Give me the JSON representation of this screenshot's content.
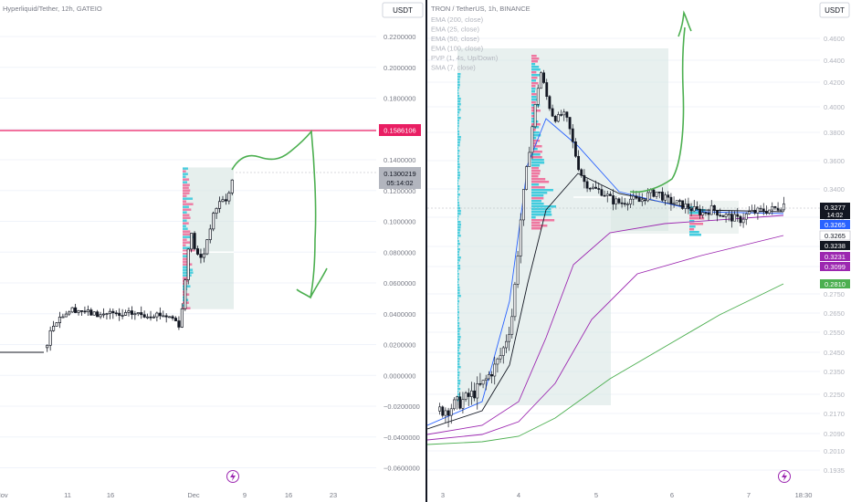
{
  "chart_data": [
    {
      "type": "candlestick",
      "symbol_title": "Hyperliquid/Tether, 12h, GATEIO",
      "currency_button": "USDT",
      "y_ticks": [
        "0.2200000",
        "0.2000000",
        "0.1800000",
        "0.1600000",
        "0.1400000",
        "0.1200000",
        "0.1000000",
        "0.0800000",
        "0.0600000",
        "0.0400000",
        "0.0200000",
        "0.0000000",
        "−0.0200000",
        "−0.0400000",
        "−0.0600000"
      ],
      "y_tick_values": [
        0.22,
        0.2,
        0.18,
        0.16,
        0.14,
        0.12,
        0.1,
        0.08,
        0.06,
        0.04,
        0.02,
        0.0,
        -0.02,
        -0.04,
        -0.06
      ],
      "x_ticks": [
        "Nov",
        "11",
        "16",
        "Dec",
        "9",
        "16",
        "23"
      ],
      "horizontal_line": {
        "value": 0.1586106,
        "label": "0.1586106",
        "color": "#e91e63"
      },
      "price_label": {
        "value": "0.1300219",
        "countdown": "05:14:02"
      },
      "price_path": [
        [
          0,
          0.015
        ],
        [
          40,
          0.015
        ],
        [
          50,
          0.018
        ],
        [
          55,
          0.028
        ],
        [
          60,
          0.035
        ],
        [
          70,
          0.04
        ],
        [
          80,
          0.043
        ],
        [
          90,
          0.042
        ],
        [
          100,
          0.04
        ],
        [
          110,
          0.039
        ],
        [
          120,
          0.041
        ],
        [
          130,
          0.038
        ],
        [
          140,
          0.04
        ],
        [
          150,
          0.04
        ],
        [
          160,
          0.039
        ],
        [
          170,
          0.04
        ],
        [
          180,
          0.039
        ],
        [
          190,
          0.037
        ],
        [
          196,
          0.033
        ],
        [
          200,
          0.045
        ],
        [
          204,
          0.07
        ],
        [
          208,
          0.095
        ],
        [
          212,
          0.085
        ],
        [
          216,
          0.078
        ],
        [
          220,
          0.076
        ],
        [
          224,
          0.08
        ],
        [
          228,
          0.092
        ],
        [
          232,
          0.1
        ],
        [
          236,
          0.108
        ],
        [
          240,
          0.112
        ],
        [
          244,
          0.115
        ],
        [
          248,
          0.112
        ],
        [
          252,
          0.122
        ],
        [
          256,
          0.13
        ]
      ],
      "candle_count": 60,
      "volume_profile_range": [
        0.043,
        0.135
      ],
      "drawing": "green hand-drawn forecast arrow pointing down"
    },
    {
      "type": "candlestick",
      "symbol_title": "TRON / TetherUS, 1h, BINANCE",
      "currency_button": "USDT",
      "legend": [
        "EMA (200, close)",
        "EMA (25, close)",
        "EMA (50, close)",
        "EMA (100, close)",
        "PVP (1, 4s, Up/Down)",
        "SMA (7, close)"
      ],
      "y_ticks": [
        "0.4600",
        "0.4400",
        "0.4200",
        "0.4000",
        "0.3800",
        "0.3600",
        "0.3400",
        "0.3200",
        "0.3000",
        "0.2900",
        "0.2750",
        "0.2650",
        "0.2550",
        "0.2450",
        "0.2350",
        "0.2250",
        "0.2170",
        "0.2090",
        "0.2010",
        "0.1935"
      ],
      "x_ticks": [
        "3",
        "4",
        "5",
        "6",
        "7",
        "18:30"
      ],
      "price_labels": [
        {
          "value": "0.3277",
          "sub": "14:02",
          "color": "#131722"
        },
        {
          "value": "0.3265",
          "color": "#2962ff"
        },
        {
          "value": "0.3265",
          "color": "#ffffff"
        },
        {
          "value": "0.3238",
          "color": "#131722"
        },
        {
          "value": "0.3231",
          "color": "#9c27b0"
        },
        {
          "value": "0.3099",
          "color": "#9c27b0"
        },
        {
          "value": "0.2810",
          "color": "#4caf50"
        }
      ],
      "price_path": [
        [
          0,
          0.218
        ],
        [
          10,
          0.219
        ],
        [
          20,
          0.221
        ],
        [
          30,
          0.223
        ],
        [
          40,
          0.226
        ],
        [
          50,
          0.23
        ],
        [
          60,
          0.236
        ],
        [
          70,
          0.245
        ],
        [
          80,
          0.26
        ],
        [
          86,
          0.29
        ],
        [
          92,
          0.33
        ],
        [
          100,
          0.37
        ],
        [
          106,
          0.4
        ],
        [
          112,
          0.43
        ],
        [
          118,
          0.41
        ],
        [
          124,
          0.395
        ],
        [
          130,
          0.39
        ],
        [
          136,
          0.395
        ],
        [
          142,
          0.388
        ],
        [
          148,
          0.37
        ],
        [
          154,
          0.355
        ],
        [
          160,
          0.345
        ],
        [
          170,
          0.34
        ],
        [
          180,
          0.338
        ],
        [
          190,
          0.332
        ],
        [
          200,
          0.33
        ],
        [
          210,
          0.333
        ],
        [
          220,
          0.331
        ],
        [
          230,
          0.336
        ],
        [
          240,
          0.338
        ],
        [
          250,
          0.332
        ],
        [
          260,
          0.33
        ],
        [
          270,
          0.328
        ],
        [
          280,
          0.325
        ],
        [
          290,
          0.323
        ],
        [
          300,
          0.326
        ],
        [
          310,
          0.322
        ],
        [
          320,
          0.32
        ],
        [
          330,
          0.318
        ],
        [
          340,
          0.323
        ],
        [
          350,
          0.324
        ],
        [
          360,
          0.325
        ],
        [
          370,
          0.326
        ],
        [
          380,
          0.33
        ],
        [
          390,
          0.329
        ]
      ],
      "drawing": "green hand-drawn forecast arrow pointing up"
    }
  ]
}
